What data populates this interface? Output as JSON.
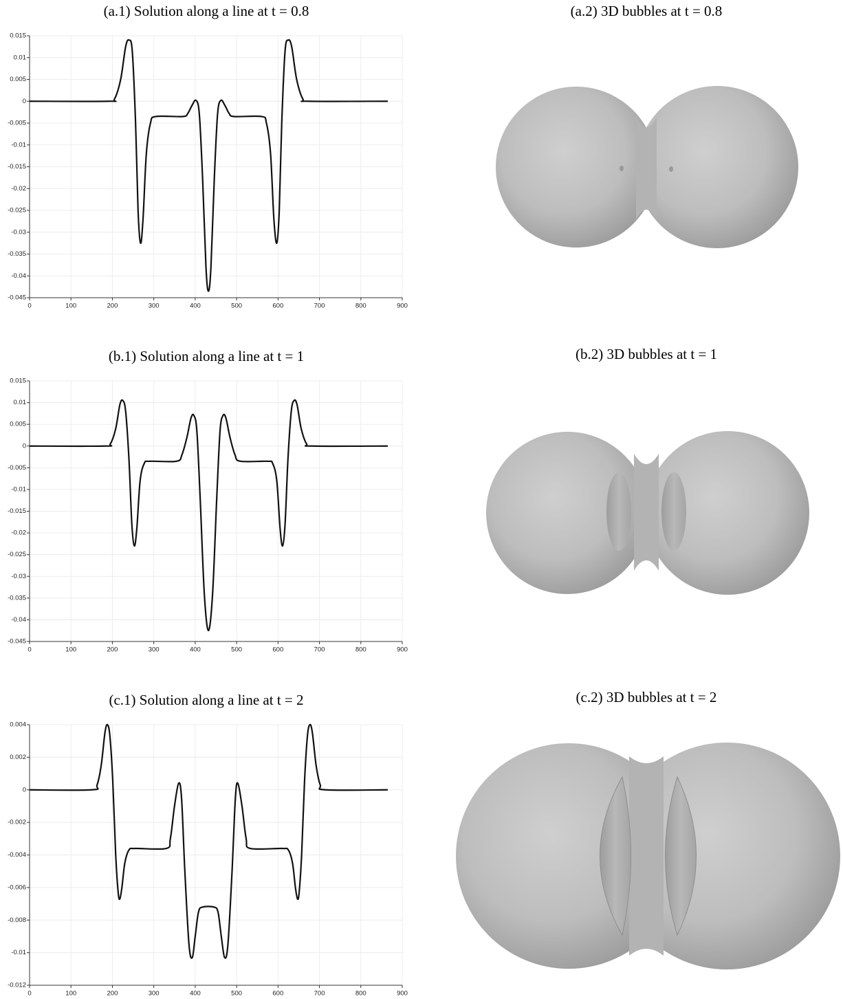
{
  "chart_data": [
    {
      "type": "line",
      "title": "(a.1) Solution along a line at t = 0.8",
      "x": [
        0,
        190,
        205,
        220,
        232,
        240,
        248,
        256,
        262,
        268,
        274,
        282,
        292,
        305,
        370,
        382,
        392,
        402,
        410,
        418,
        426,
        432,
        438,
        446,
        454,
        462,
        472,
        482,
        494,
        560,
        572,
        582,
        590,
        597,
        603,
        609,
        617,
        625,
        633,
        645,
        660,
        675,
        865
      ],
      "series": [
        {
          "color": "#111111",
          "values": [
            0,
            0,
            0.0005,
            0.005,
            0.0125,
            0.014,
            0.0115,
            -0.005,
            -0.025,
            -0.0325,
            -0.027,
            -0.012,
            -0.005,
            -0.0035,
            -0.0035,
            -0.0028,
            -0.001,
            0.0002,
            -0.003,
            -0.018,
            -0.038,
            -0.0435,
            -0.038,
            -0.018,
            -0.003,
            0.0002,
            -0.001,
            -0.0028,
            -0.0035,
            -0.0035,
            -0.005,
            -0.012,
            -0.027,
            -0.0325,
            -0.025,
            -0.005,
            0.0115,
            0.014,
            0.0125,
            0.005,
            0.0005,
            0,
            0
          ]
        }
      ],
      "xlim": [
        0,
        900
      ],
      "xticks": [
        0,
        100,
        200,
        300,
        400,
        500,
        600,
        700,
        800,
        900
      ],
      "ylim": [
        -0.045,
        0.015
      ],
      "yticks": [
        0.015,
        0.01,
        0.005,
        0,
        -0.005,
        -0.01,
        -0.015,
        -0.02,
        -0.025,
        -0.03,
        -0.035,
        -0.04,
        -0.045
      ],
      "grid": true
    },
    {
      "type": "line",
      "title": "(b.1) Solution along a line at t = 1",
      "x": [
        0,
        180,
        195,
        208,
        218,
        225,
        232,
        240,
        247,
        253,
        259,
        267,
        277,
        290,
        355,
        368,
        380,
        390,
        397,
        404,
        412,
        422,
        432,
        442,
        452,
        460,
        467,
        474,
        484,
        496,
        509,
        575,
        587,
        597,
        605,
        611,
        617,
        624,
        632,
        639,
        646,
        656,
        669,
        684,
        865
      ],
      "series": [
        {
          "color": "#111111",
          "values": [
            0,
            0,
            0.0005,
            0.004,
            0.0095,
            0.0105,
            0.008,
            -0.003,
            -0.018,
            -0.023,
            -0.019,
            -0.008,
            -0.004,
            -0.0035,
            -0.0035,
            -0.002,
            0.002,
            0.0065,
            0.007,
            0.0035,
            -0.012,
            -0.034,
            -0.0425,
            -0.034,
            -0.012,
            0.0035,
            0.007,
            0.0065,
            0.002,
            -0.002,
            -0.0035,
            -0.0035,
            -0.004,
            -0.008,
            -0.019,
            -0.023,
            -0.018,
            -0.003,
            0.008,
            0.0105,
            0.0095,
            0.004,
            0.0005,
            0,
            0
          ]
        }
      ],
      "xlim": [
        0,
        900
      ],
      "xticks": [
        0,
        100,
        200,
        300,
        400,
        500,
        600,
        700,
        800,
        900
      ],
      "ylim": [
        -0.045,
        0.015
      ],
      "yticks": [
        0.015,
        0.01,
        0.005,
        0,
        -0.005,
        -0.01,
        -0.015,
        -0.02,
        -0.025,
        -0.03,
        -0.035,
        -0.04,
        -0.045
      ],
      "grid": true
    },
    {
      "type": "line",
      "title": "(c.1) Solution along a line at t = 2",
      "x": [
        0,
        150,
        163,
        173,
        182,
        188,
        194,
        201,
        208,
        214,
        218,
        223,
        230,
        240,
        255,
        330,
        340,
        350,
        360,
        367,
        375,
        385,
        393,
        400,
        408,
        418,
        445,
        455,
        463,
        471,
        479,
        489,
        497,
        503,
        513,
        523,
        533,
        610,
        625,
        635,
        642,
        647,
        651,
        657,
        664,
        671,
        677,
        683,
        692,
        702,
        715,
        865
      ],
      "series": [
        {
          "color": "#111111",
          "values": [
            0,
            0,
            0.0003,
            0.0015,
            0.0035,
            0.004,
            0.0033,
            0.0005,
            -0.004,
            -0.0063,
            -0.0067,
            -0.006,
            -0.0045,
            -0.0037,
            -0.0036,
            -0.0036,
            -0.003,
            -0.001,
            0.0004,
            -0.0005,
            -0.005,
            -0.0095,
            -0.0103,
            -0.009,
            -0.0075,
            -0.0072,
            -0.0072,
            -0.0075,
            -0.009,
            -0.0103,
            -0.0095,
            -0.005,
            -0.0005,
            0.0004,
            -0.001,
            -0.003,
            -0.0036,
            -0.0036,
            -0.0037,
            -0.0045,
            -0.006,
            -0.0067,
            -0.0063,
            -0.004,
            0.0005,
            0.0033,
            0.004,
            0.0035,
            0.0015,
            0.0003,
            0,
            0
          ]
        }
      ],
      "xlim": [
        0,
        900
      ],
      "xticks": [
        0,
        100,
        200,
        300,
        400,
        500,
        600,
        700,
        800,
        900
      ],
      "ylim": [
        -0.012,
        0.004
      ],
      "yticks": [
        0.004,
        0.002,
        0,
        -0.002,
        -0.004,
        -0.006,
        -0.008,
        -0.01,
        -0.012
      ],
      "grid": true
    }
  ],
  "images": [
    {
      "title": "(a.2) 3D bubbles at t = 0.8"
    },
    {
      "title": "(b.2) 3D bubbles at t = 1"
    },
    {
      "title": "(c.2) 3D bubbles at t = 2"
    }
  ]
}
